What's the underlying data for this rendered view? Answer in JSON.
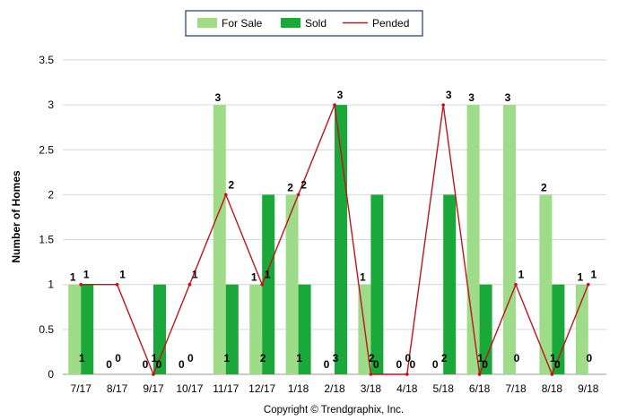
{
  "chart_data": {
    "type": "bar",
    "categories": [
      "7/17",
      "8/17",
      "9/17",
      "10/17",
      "11/17",
      "12/17",
      "1/18",
      "2/18",
      "3/18",
      "4/18",
      "5/18",
      "6/18",
      "7/18",
      "8/18",
      "9/18"
    ],
    "series": [
      {
        "name": "For Sale",
        "type": "bar",
        "color": "#9fdc8a",
        "values": [
          1,
          0,
          0,
          0,
          3,
          1,
          2,
          0,
          1,
          0,
          0,
          3,
          3,
          2,
          1
        ]
      },
      {
        "name": "Sold",
        "type": "bar",
        "color": "#1aa83a",
        "values": [
          1,
          0,
          1,
          0,
          1,
          2,
          1,
          3,
          2,
          0,
          2,
          1,
          0,
          1,
          0
        ]
      },
      {
        "name": "Pended",
        "type": "line",
        "color": "#c0141b",
        "values": [
          1,
          1,
          0,
          1,
          2,
          1,
          2,
          3,
          0,
          0,
          3,
          0,
          1,
          0,
          1
        ]
      }
    ],
    "xlabel": "",
    "ylabel": "Number of Homes",
    "ylim": [
      0,
      3.5
    ],
    "yticks": [
      "0",
      "0.5",
      "1",
      "1.5",
      "2",
      "2.5",
      "3",
      "3.5"
    ],
    "grid": true,
    "legend": "top-center"
  },
  "footer": "Copyright © Trendgraphix, Inc."
}
